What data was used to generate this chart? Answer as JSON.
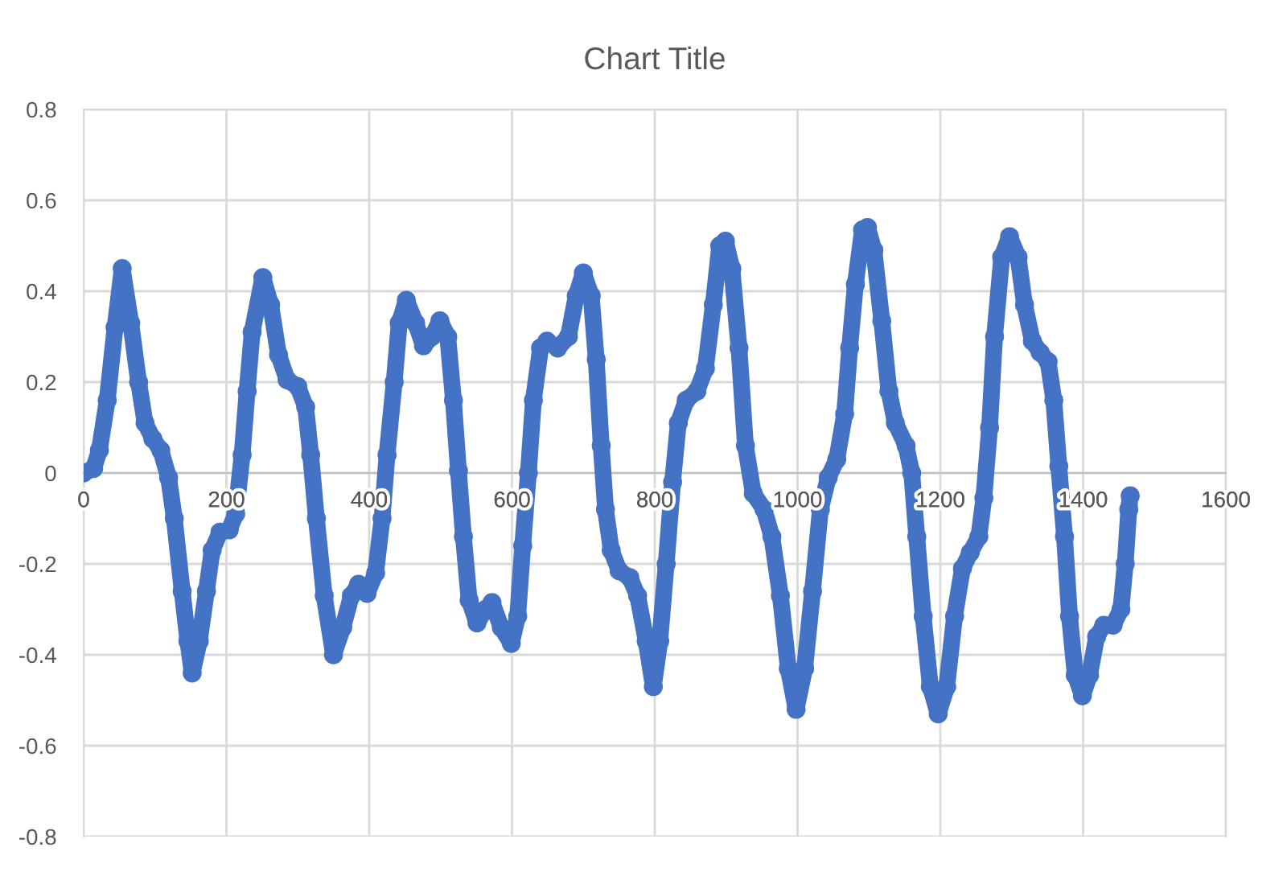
{
  "chart_data": {
    "type": "line",
    "title": "Chart Title",
    "color": "#4472c4",
    "marker": "circle",
    "grid": true,
    "x": [
      0,
      14,
      22,
      33,
      44,
      54,
      66,
      77,
      86,
      97,
      108,
      119,
      127,
      138,
      146,
      152,
      162,
      172,
      180,
      191,
      204,
      213,
      222,
      229,
      236,
      251,
      262,
      273,
      285,
      300,
      311,
      318,
      326,
      337,
      350,
      363,
      375,
      385,
      397,
      409,
      418,
      425,
      435,
      442,
      452,
      465,
      476,
      488,
      499,
      510,
      518,
      525,
      532,
      540,
      551,
      563,
      572,
      585,
      599,
      608,
      615,
      623,
      630,
      640,
      649,
      664,
      679,
      690,
      700,
      711,
      718,
      725,
      731,
      739,
      750,
      765,
      776,
      788,
      798,
      807,
      816,
      825,
      833,
      844,
      859,
      871,
      882,
      891,
      899,
      908,
      918,
      927,
      938,
      953,
      964,
      976,
      987,
      998,
      1010,
      1021,
      1032,
      1043,
      1055,
      1066,
      1073,
      1081,
      1091,
      1098,
      1107,
      1118,
      1128,
      1137,
      1152,
      1160,
      1167,
      1176,
      1186,
      1197,
      1209,
      1220,
      1231,
      1242,
      1254,
      1261,
      1269,
      1276,
      1286,
      1297,
      1309,
      1318,
      1329,
      1340,
      1351,
      1359,
      1366,
      1374,
      1381,
      1389,
      1399,
      1409,
      1419,
      1429,
      1442,
      1453,
      1459,
      1464,
      1466
    ],
    "values": [
      0,
      0.01,
      0.05,
      0.16,
      0.32,
      0.45,
      0.33,
      0.2,
      0.11,
      0.075,
      0.05,
      -0.01,
      -0.1,
      -0.26,
      -0.37,
      -0.44,
      -0.37,
      -0.26,
      -0.17,
      -0.13,
      -0.125,
      -0.09,
      0.04,
      0.18,
      0.31,
      0.43,
      0.37,
      0.26,
      0.205,
      0.19,
      0.145,
      0.04,
      -0.1,
      -0.27,
      -0.4,
      -0.34,
      -0.27,
      -0.245,
      -0.265,
      -0.22,
      -0.1,
      0.04,
      0.2,
      0.33,
      0.38,
      0.33,
      0.28,
      0.3,
      0.335,
      0.3,
      0.16,
      0.005,
      -0.14,
      -0.28,
      -0.33,
      -0.3,
      -0.285,
      -0.34,
      -0.375,
      -0.315,
      -0.16,
      0,
      0.16,
      0.275,
      0.29,
      0.275,
      0.3,
      0.39,
      0.44,
      0.39,
      0.25,
      0.06,
      -0.08,
      -0.17,
      -0.215,
      -0.23,
      -0.27,
      -0.37,
      -0.47,
      -0.37,
      -0.2,
      -0.02,
      0.11,
      0.16,
      0.18,
      0.23,
      0.37,
      0.5,
      0.51,
      0.45,
      0.275,
      0.06,
      -0.045,
      -0.08,
      -0.14,
      -0.27,
      -0.43,
      -0.52,
      -0.43,
      -0.26,
      -0.08,
      -0.01,
      0.03,
      0.13,
      0.275,
      0.415,
      0.535,
      0.54,
      0.49,
      0.335,
      0.18,
      0.11,
      0.06,
      0,
      -0.14,
      -0.315,
      -0.47,
      -0.53,
      -0.47,
      -0.315,
      -0.21,
      -0.175,
      -0.14,
      -0.055,
      0.1,
      0.3,
      0.475,
      0.52,
      0.475,
      0.37,
      0.29,
      0.265,
      0.245,
      0.16,
      0.015,
      -0.14,
      -0.315,
      -0.445,
      -0.49,
      -0.445,
      -0.36,
      -0.335,
      -0.335,
      -0.3,
      -0.2,
      -0.08,
      -0.05
    ],
    "xlim": [
      0,
      1600
    ],
    "xticks": [
      0,
      200,
      400,
      600,
      800,
      1000,
      1200,
      1400,
      1600
    ],
    "ylim": [
      -0.8,
      0.8
    ],
    "yticks": [
      -0.8,
      -0.6,
      -0.4,
      -0.2,
      0,
      0.2,
      0.4,
      0.6,
      0.8
    ]
  }
}
